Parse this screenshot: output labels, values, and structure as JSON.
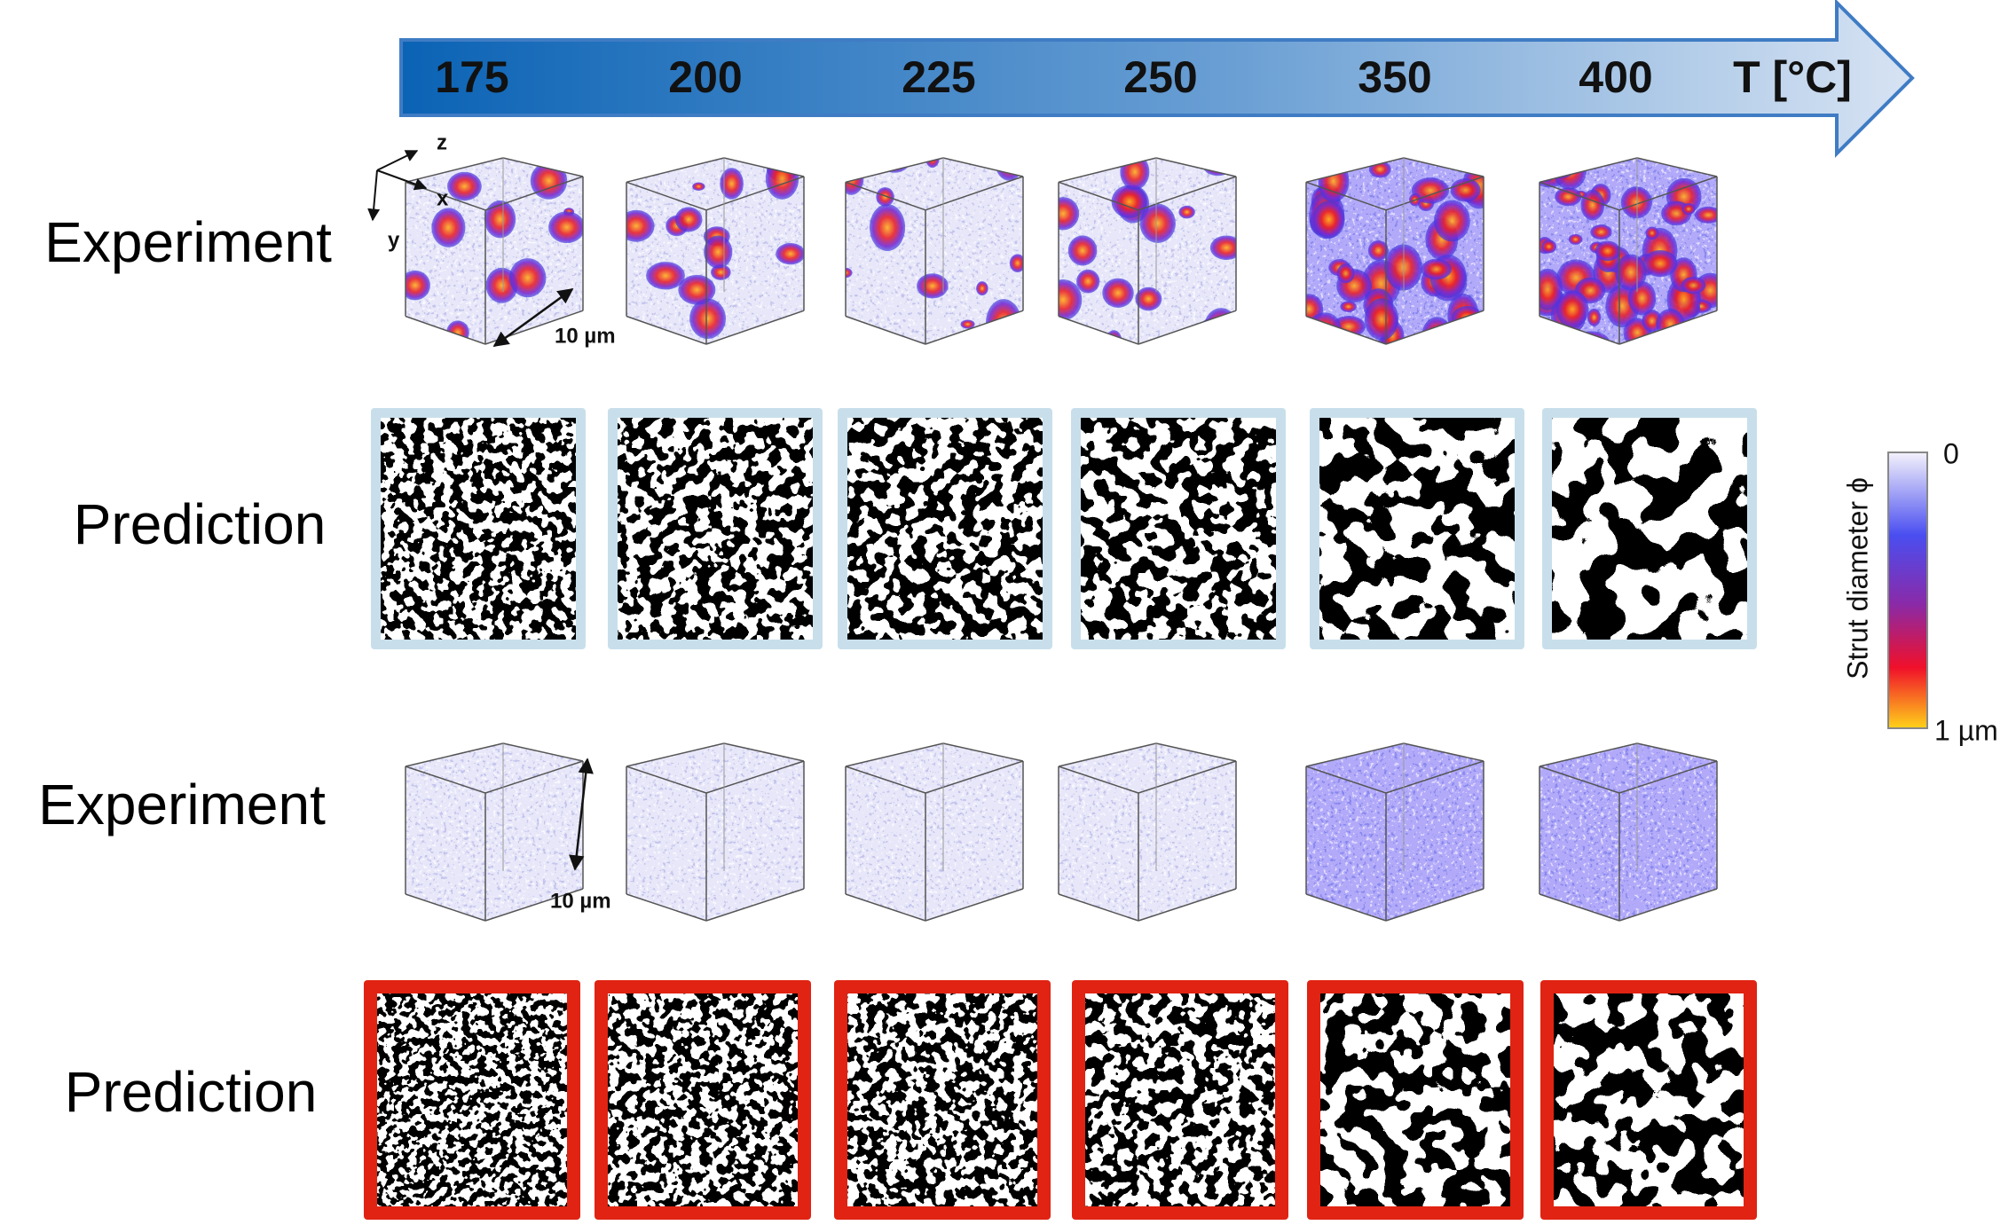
{
  "temperature_axis": {
    "temperatures": [
      175,
      200,
      225,
      250,
      350,
      400
    ],
    "label": "T [°C]"
  },
  "rows": [
    {
      "label": "Experiment"
    },
    {
      "label": "Prediction"
    },
    {
      "label": "Experiment"
    },
    {
      "label": "Prediction"
    }
  ],
  "axes_labels": [
    "z",
    "x",
    "y"
  ],
  "scale_bars": [
    "10 µm",
    "10 µm"
  ],
  "colorbar": {
    "title": "Strut diameter ϕ",
    "max_label": "0",
    "min_label": "1 µm"
  }
}
